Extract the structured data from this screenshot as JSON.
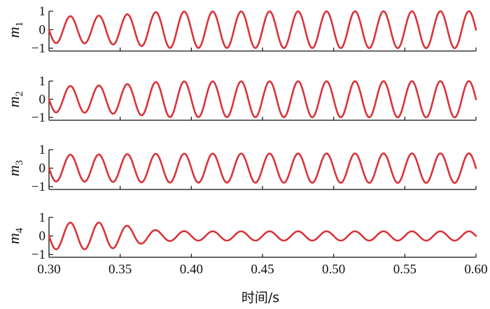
{
  "chart_data": {
    "type": "line",
    "xlabel": "时间/s",
    "xlim": [
      0.3,
      0.6
    ],
    "x_ticks": [
      "0.30",
      "0.35",
      "0.40",
      "0.45",
      "0.50",
      "0.55",
      "0.60"
    ],
    "x_tick_values": [
      0.3,
      0.35,
      0.4,
      0.45,
      0.5,
      0.55,
      0.6
    ],
    "line_color": "#d8343a",
    "grid": false,
    "legend": "none",
    "panels": [
      {
        "ylabel": "m",
        "ylabel_sub": "1",
        "ylim": [
          -1.1,
          1.1
        ],
        "y_ticks": [
          "1",
          "0",
          "−1"
        ],
        "y_tick_values": [
          1,
          0,
          -1
        ],
        "frequency_hz": 50,
        "envelope": {
          "t": [
            0.3,
            0.33,
            0.36,
            0.38,
            0.6
          ],
          "amp": [
            0.72,
            0.74,
            0.85,
            0.98,
            1.0
          ]
        }
      },
      {
        "ylabel": "m",
        "ylabel_sub": "2",
        "ylim": [
          -1.1,
          1.1
        ],
        "y_ticks": [
          "1",
          "0",
          "−1"
        ],
        "y_tick_values": [
          1,
          0,
          -1
        ],
        "frequency_hz": 50,
        "envelope": {
          "t": [
            0.3,
            0.33,
            0.36,
            0.38,
            0.6
          ],
          "amp": [
            0.72,
            0.74,
            0.85,
            0.98,
            1.0
          ]
        }
      },
      {
        "ylabel": "m",
        "ylabel_sub": "3",
        "ylim": [
          -1.1,
          1.1
        ],
        "y_ticks": [
          "1",
          "0",
          "−1"
        ],
        "y_tick_values": [
          1,
          0,
          -1
        ],
        "frequency_hz": 50,
        "envelope": {
          "t": [
            0.3,
            0.33,
            0.36,
            0.38,
            0.6
          ],
          "amp": [
            0.72,
            0.73,
            0.76,
            0.78,
            0.8
          ]
        }
      },
      {
        "ylabel": "m",
        "ylabel_sub": "4",
        "ylim": [
          -1.1,
          1.1
        ],
        "y_ticks": [
          "1",
          "0",
          "−1"
        ],
        "y_tick_values": [
          1,
          0,
          -1
        ],
        "frequency_hz": 50,
        "envelope": {
          "t": [
            0.3,
            0.34,
            0.355,
            0.37,
            0.38,
            0.4,
            0.6
          ],
          "amp": [
            0.72,
            0.72,
            0.55,
            0.35,
            0.28,
            0.25,
            0.25
          ]
        }
      }
    ]
  }
}
